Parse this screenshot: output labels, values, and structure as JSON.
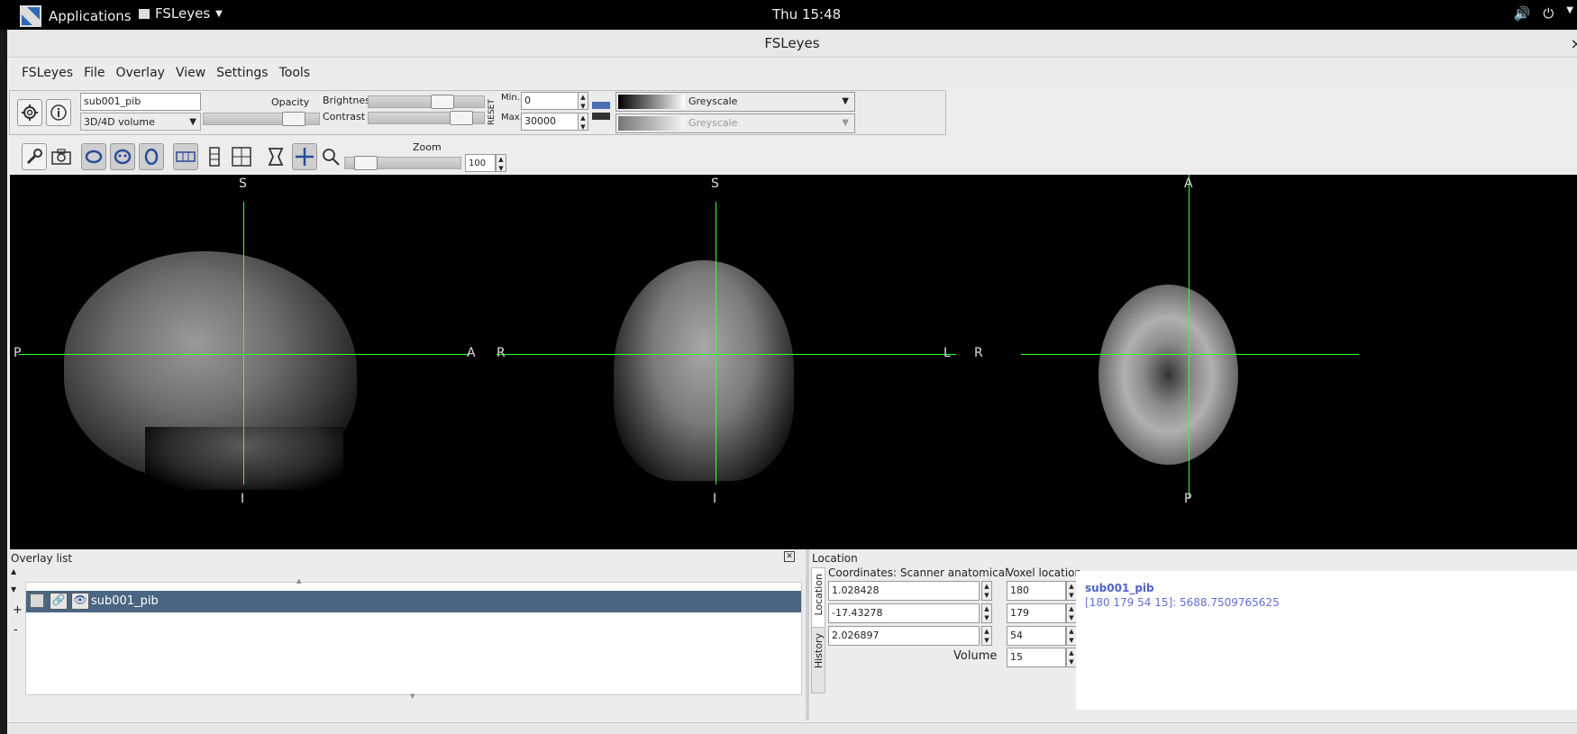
{
  "topbar": {
    "applications": "Applications",
    "app_menu": "FSLeyes",
    "clock": "Thu 15:48"
  },
  "window": {
    "title": "FSLeyes",
    "close": "×"
  },
  "menu": [
    "FSLeyes",
    "File",
    "Overlay",
    "View",
    "Settings",
    "Tools"
  ],
  "overlay_toolbar": {
    "overlay_name": "sub001_pib",
    "overlay_type": "3D/4D volume",
    "opacity_label": "Opacity",
    "brightness_label": "Brightness",
    "contrast_label": "Contrast",
    "reset_label": "RESET",
    "min_label": "Min.",
    "max_label": "Max.",
    "min_value": "0",
    "max_value": "30000",
    "cmap1": "Greyscale",
    "cmap2": "Greyscale",
    "opacity_level": 0.85,
    "brightness_level": 0.68,
    "contrast_level": 0.88
  },
  "ortho_toolbar": {
    "zoom_label": "Zoom",
    "zoom_value": "100",
    "zoom_level": 0.1
  },
  "views": {
    "sagittal": {
      "top": "S",
      "bottom": "I",
      "left": "P",
      "right": "A"
    },
    "coronal": {
      "top": "S",
      "bottom": "I",
      "left": "R",
      "right": "L"
    },
    "axial": {
      "top": "A",
      "bottom": "P",
      "left": "R",
      "right": ""
    }
  },
  "overlay_list": {
    "title": "Overlay list",
    "item": "sub001_pib",
    "add": "+",
    "remove": "-"
  },
  "location": {
    "title": "Location",
    "coords_label": "Coordinates: Scanner anatomical",
    "voxel_label": "Voxel location",
    "volume_label": "Volume",
    "coords": [
      "1.028428",
      "-17.43278",
      "2.026897"
    ],
    "voxels": [
      "180",
      "179",
      "54"
    ],
    "volume": "15",
    "tab_location": "Location",
    "tab_history": "History",
    "info_name": "sub001_pib",
    "info_value": "[180 179 54 15]: 5688.7509765625"
  }
}
